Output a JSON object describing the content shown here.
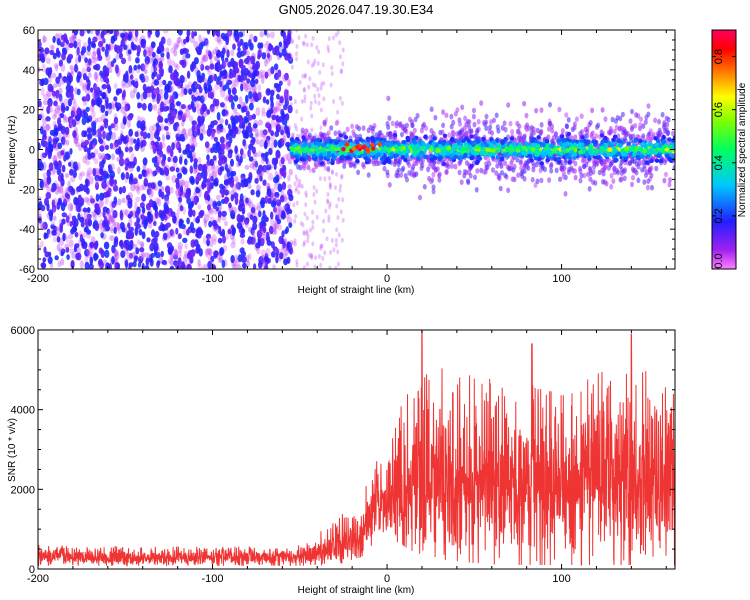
{
  "title": "GN05.2026.047.19.30.E34",
  "chart_data": [
    {
      "type": "heatmap",
      "xlabel": "Height of straight line (km)",
      "ylabel": "Frequency (Hz)",
      "xlim": [
        -200,
        165
      ],
      "ylim": [
        -60,
        60
      ],
      "xticks": [
        -200,
        -100,
        0,
        100
      ],
      "yticks": [
        -60,
        -40,
        -20,
        0,
        20,
        40,
        60
      ],
      "colorbar": {
        "label": "Normalized spectral amplitude",
        "range": [
          0,
          0.9
        ],
        "ticks": [
          0.0,
          0.2,
          0.4,
          0.6,
          0.8
        ],
        "colormap": "gnuplot-rainbow (magenta→purple→blue→cyan→green→yellow→orange→red)"
      },
      "regions": [
        {
          "x": [
            -200,
            -55
          ],
          "freq_range": [
            -60,
            60
          ],
          "amplitude": [
            0.02,
            0.2
          ],
          "description_key": "noise"
        },
        {
          "x": [
            -55,
            -25
          ],
          "freq_range": [
            -60,
            60
          ],
          "amplitude": [
            0.0,
            0.05
          ],
          "description_key": "sparse noise"
        },
        {
          "x": [
            -55,
            165
          ],
          "freq_center": 0,
          "freq_halfwidth": [
            3,
            15
          ],
          "amplitude": [
            0.2,
            0.9
          ],
          "description_key": "signal band"
        }
      ],
      "peak": {
        "x": -15,
        "freq": 1,
        "amplitude": 0.88
      }
    },
    {
      "type": "line",
      "color": "#ef3434",
      "xlabel": "Height of straight line (km)",
      "ylabel": "SNR (10 * v/v)",
      "xlim": [
        -200,
        165
      ],
      "ylim": [
        0,
        6000
      ],
      "xticks": [
        -200,
        -100,
        0,
        100
      ],
      "yticks": [
        0,
        2000,
        4000,
        6000
      ],
      "envelope": [
        {
          "x": -200,
          "low": 80,
          "high": 600
        },
        {
          "x": -100,
          "low": 80,
          "high": 550
        },
        {
          "x": -50,
          "low": 80,
          "high": 600
        },
        {
          "x": -30,
          "low": 100,
          "high": 1200
        },
        {
          "x": -15,
          "low": 300,
          "high": 1800
        },
        {
          "x": -5,
          "low": 600,
          "high": 2800
        },
        {
          "x": 5,
          "low": 700,
          "high": 3800
        },
        {
          "x": 20,
          "low": 300,
          "high": 5200
        },
        {
          "x": 60,
          "low": 100,
          "high": 4800
        },
        {
          "x": 100,
          "low": 100,
          "high": 4600
        },
        {
          "x": 140,
          "low": 100,
          "high": 5200
        },
        {
          "x": 165,
          "low": 100,
          "high": 4500
        }
      ],
      "peaks": [
        {
          "x": 20,
          "y": 6000
        },
        {
          "x": 140,
          "y": 5900
        },
        {
          "x": 83,
          "y": 5650
        }
      ]
    }
  ]
}
